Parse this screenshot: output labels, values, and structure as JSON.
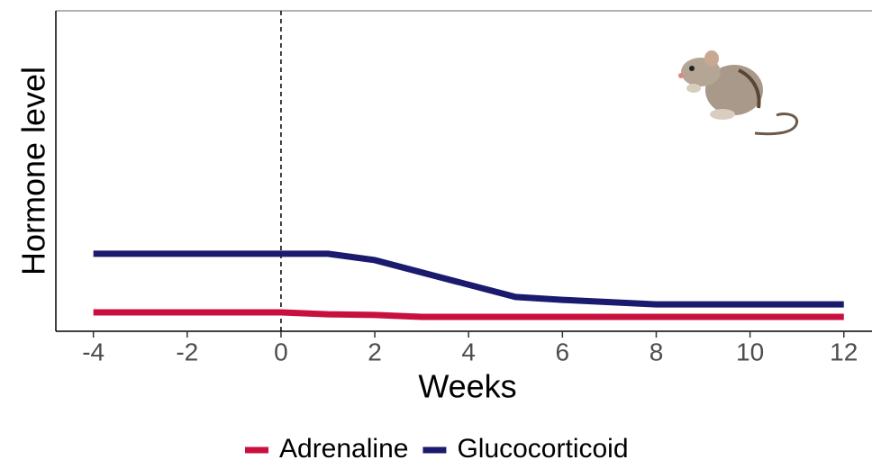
{
  "chart_data": {
    "type": "line",
    "x_label": "Weeks",
    "y_label": "Hormone level",
    "series": [
      {
        "name": "Adrenaline",
        "color": "#c8103e",
        "x": [
          -4,
          0,
          1,
          2,
          3,
          12
        ],
        "values": [
          5.9,
          5.9,
          5.3,
          5.1,
          4.5,
          4.5
        ]
      },
      {
        "name": "Glucocorticoid",
        "color": "#1a1a6e",
        "x": [
          -4,
          1,
          2,
          5,
          6,
          8,
          12
        ],
        "values": [
          24.2,
          24.2,
          22.2,
          10.7,
          9.8,
          8.4,
          8.4
        ]
      }
    ],
    "xlim": [
      -4.8,
      12.6
    ],
    "xticks": [
      -4,
      -2,
      0,
      2,
      4,
      6,
      8,
      10,
      12
    ],
    "ylim": [
      0,
      100
    ],
    "vline": 0,
    "legend": "bottom"
  }
}
